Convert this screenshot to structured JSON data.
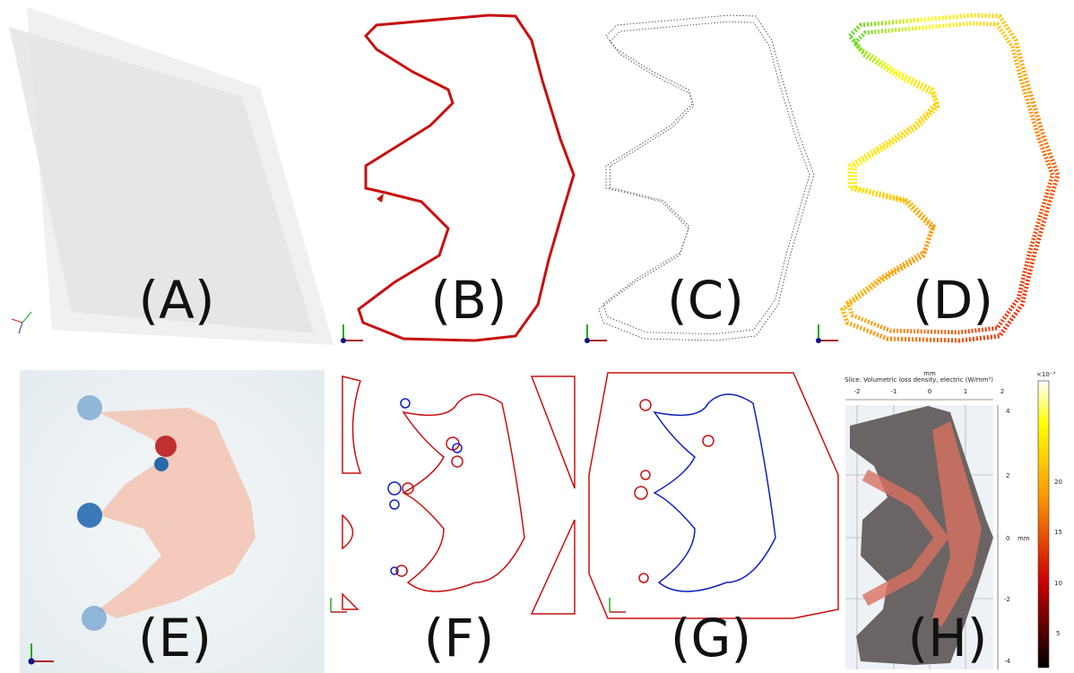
{
  "panels": [
    {
      "label": "(A)"
    },
    {
      "label": "(B)"
    },
    {
      "label": "(C)"
    },
    {
      "label": "(D)"
    },
    {
      "label": "(E)"
    },
    {
      "label": "(F)"
    },
    {
      "label": "(G)"
    },
    {
      "label": "(H)"
    }
  ],
  "panel_h": {
    "title": "Slice: Volumetric loss density, electric (W/mm³)",
    "x_unit": "mm",
    "x_ticks": [
      "-2",
      "-1",
      "0",
      "1",
      "2"
    ],
    "y_unit": "mm",
    "y_ticks": [
      "4",
      "2",
      "0",
      "-2",
      "-4"
    ],
    "colorbar_multiplier": "×10⁻³",
    "colorbar_ticks": [
      "20",
      "15",
      "10",
      "5"
    ]
  }
}
